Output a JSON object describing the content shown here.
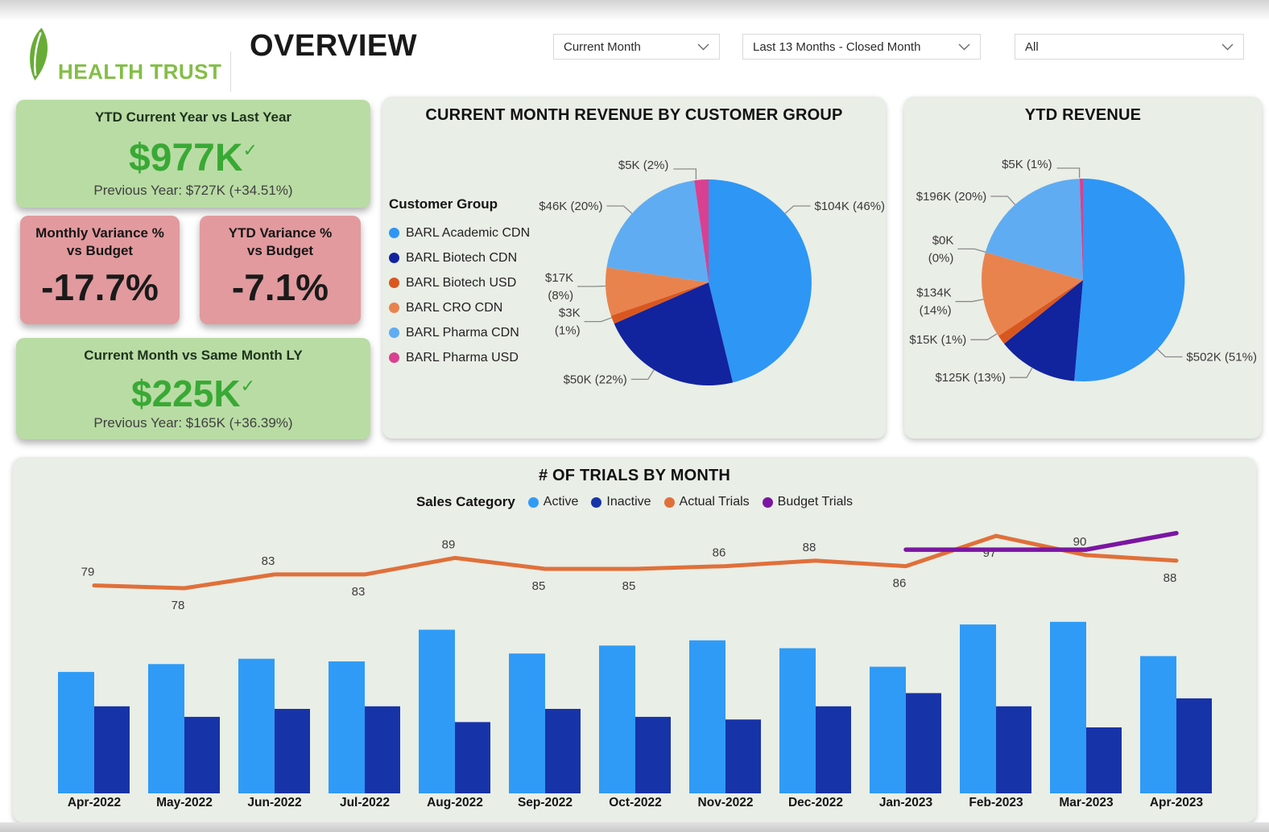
{
  "header": {
    "logo_text": "HEALTH TRUST",
    "title": "OVERVIEW",
    "filters": [
      {
        "name": "period-filter",
        "value": "Current Month"
      },
      {
        "name": "range-filter",
        "value": "Last 13 Months - Closed Month"
      },
      {
        "name": "scope-filter",
        "value": "All"
      }
    ]
  },
  "kpis": {
    "ytd": {
      "title": "YTD Current Year vs Last Year",
      "value": "$977K",
      "check": "✓",
      "subtitle": "Previous Year: $727K (+34.51%)"
    },
    "monthly_variance": {
      "title": "Monthly Variance % vs Budget",
      "value": "-17.7%"
    },
    "ytd_variance": {
      "title": "YTD Variance % vs Budget",
      "value": "-7.1%"
    },
    "current_month": {
      "title": "Current Month vs Same Month LY",
      "value": "$225K",
      "check": "✓",
      "subtitle": "Previous Year: $165K (+36.39%)"
    }
  },
  "chart_data": [
    {
      "id": "current_month_pie",
      "type": "pie",
      "title": "CURRENT MONTH REVENUE BY CUSTOMER GROUP",
      "legend_title": "Customer Group",
      "legend_position": "left",
      "units": "K USD",
      "slices": [
        {
          "name": "BARL Academic CDN",
          "value": 104,
          "pct": 46,
          "label_lines": [
            "$104K (46%)"
          ],
          "color": "#2E96F5",
          "label_angle": 48
        },
        {
          "name": "BARL Biotech CDN",
          "value": 50,
          "pct": 22,
          "label_lines": [
            "$50K (22%)"
          ],
          "color": "#12239E",
          "label_angle": 212
        },
        {
          "name": "BARL Biotech USD",
          "value": 3,
          "pct": 1,
          "label_lines": [
            "$3K",
            "(1%)"
          ],
          "color": "#D9571F",
          "label_angle": 250
        },
        {
          "name": "BARL CRO CDN",
          "value": 17,
          "pct": 8,
          "label_lines": [
            "$17K",
            "(8%)"
          ],
          "color": "#E8834E",
          "label_angle": 268
        },
        {
          "name": "BARL Pharma CDN",
          "value": 46,
          "pct": 20,
          "label_lines": [
            "$46K (20%)"
          ],
          "color": "#5FACF2",
          "label_angle": 312
        },
        {
          "name": "BARL Pharma USD",
          "value": 5,
          "pct": 2,
          "label_lines": [
            "$5K (2%)"
          ],
          "color": "#D9408F",
          "label_angle": 353
        }
      ]
    },
    {
      "id": "ytd_pie",
      "type": "pie",
      "title": "YTD REVENUE",
      "units": "K USD",
      "slices": [
        {
          "name": "BARL Academic CDN",
          "value": 502,
          "pct": 51,
          "label_lines": [
            "$502K (51%)"
          ],
          "color": "#2E96F5",
          "label_angle": 133
        },
        {
          "name": "BARL Biotech CDN",
          "value": 125,
          "pct": 13,
          "label_lines": [
            "$125K (13%)"
          ],
          "color": "#12239E",
          "label_angle": 210
        },
        {
          "name": "BARL Biotech USD",
          "value": 15,
          "pct": 1,
          "label_lines": [
            "$15K (1%)"
          ],
          "color": "#D9571F",
          "label_angle": 238
        },
        {
          "name": "BARL CRO CDN",
          "value": 134,
          "pct": 14,
          "label_lines": [
            "$134K",
            "(14%)"
          ],
          "color": "#E8834E",
          "label_angle": 259
        },
        {
          "name": "",
          "value": 0,
          "pct": 0,
          "label_lines": [
            "$0K",
            "(0%)"
          ],
          "color": "#E8834E",
          "label_angle": 286
        },
        {
          "name": "BARL Pharma CDN",
          "value": 196,
          "pct": 20,
          "label_lines": [
            "$196K (20%)"
          ],
          "color": "#5FACF2",
          "label_angle": 318
        },
        {
          "name": "BARL Pharma USD",
          "value": 5,
          "pct": 1,
          "label_lines": [
            "$5K (1%)"
          ],
          "color": "#D9408F",
          "label_angle": 358
        }
      ]
    },
    {
      "id": "trials_by_month",
      "type": "bar",
      "subtype": "column-line-combo",
      "title": "# OF TRIALS BY MONTH",
      "legend_title": "Sales Category",
      "legend_position": "top",
      "categories": [
        "Apr-2022",
        "May-2022",
        "Jun-2022",
        "Jul-2022",
        "Aug-2022",
        "Sep-2022",
        "Oct-2022",
        "Nov-2022",
        "Dec-2022",
        "Jan-2023",
        "Feb-2023",
        "Mar-2023",
        "Apr-2023"
      ],
      "series": [
        {
          "name": "Active",
          "render": "column",
          "color": "#2F9BF7",
          "values": [
            46,
            49,
            51,
            50,
            62,
            53,
            56,
            58,
            55,
            48,
            64,
            65,
            52
          ],
          "estimated": true
        },
        {
          "name": "Inactive",
          "render": "column",
          "color": "#1733A8",
          "values": [
            33,
            29,
            32,
            33,
            27,
            32,
            29,
            28,
            33,
            38,
            33,
            25,
            36
          ],
          "estimated": true
        },
        {
          "name": "Actual Trials",
          "render": "line",
          "color": "#E0703A",
          "values": [
            79,
            78,
            83,
            83,
            89,
            85,
            85,
            86,
            88,
            86,
            97,
            90,
            88
          ],
          "labels_visible": true
        },
        {
          "name": "Budget Trials",
          "render": "line",
          "color": "#7B16A2",
          "values": [
            null,
            null,
            null,
            null,
            null,
            null,
            null,
            null,
            null,
            92,
            92,
            92,
            98
          ],
          "labels_visible": false,
          "estimated": true
        }
      ],
      "label_positions": [
        "above",
        "below",
        "above",
        "below",
        "above",
        "below",
        "below",
        "above",
        "above",
        "below",
        "below",
        "above",
        "below"
      ],
      "grid": false,
      "y_axis_visible": false
    }
  ]
}
